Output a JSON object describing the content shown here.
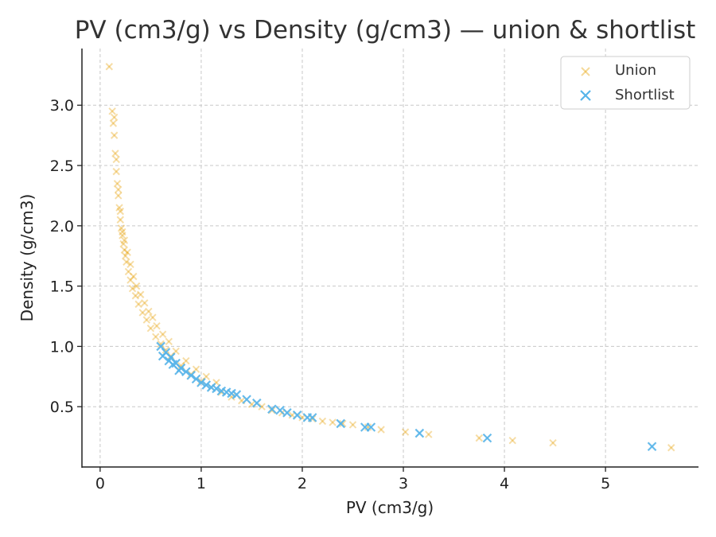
{
  "chart_data": {
    "type": "scatter",
    "title": "PV (cm3/g) vs Density (g/cm3) — union & shortlist",
    "xlabel": "PV (cm3/g)",
    "ylabel": "Density (g/cm3)",
    "xlim": [
      -0.18,
      5.92
    ],
    "ylim": [
      0.0,
      3.47
    ],
    "xticks": [
      0,
      1,
      2,
      3,
      4,
      5
    ],
    "xtick_labels": [
      "0",
      "1",
      "2",
      "3",
      "4",
      "5"
    ],
    "yticks": [
      0.5,
      1.0,
      1.5,
      2.0,
      2.5,
      3.0
    ],
    "ytick_labels": [
      "0.5",
      "1.0",
      "1.5",
      "2.0",
      "2.5",
      "3.0"
    ],
    "grid": true,
    "legend_position": "top-right",
    "marker": "x",
    "series": [
      {
        "name": "Union",
        "color": "#E69F00",
        "alpha": 0.35,
        "x": [
          0.09,
          0.12,
          0.13,
          0.14,
          0.15,
          0.16,
          0.17,
          0.18,
          0.19,
          0.2,
          0.21,
          0.22,
          0.23,
          0.24,
          0.25,
          0.26,
          0.28,
          0.3,
          0.32,
          0.35,
          0.38,
          0.42,
          0.46,
          0.5,
          0.55,
          0.6,
          0.65,
          0.7,
          0.8,
          0.9,
          1.0,
          1.1,
          1.2,
          1.3,
          1.4,
          1.5,
          1.6,
          1.7,
          1.8,
          1.9,
          2.0,
          2.1,
          2.2,
          2.3,
          2.4,
          2.5,
          2.65,
          2.78,
          3.02,
          3.25,
          3.75,
          4.08,
          4.48,
          5.65,
          0.14,
          0.16,
          0.18,
          0.2,
          0.22,
          0.24,
          0.27,
          0.3,
          0.33,
          0.36,
          0.4,
          0.44,
          0.48,
          0.52,
          0.56,
          0.62,
          0.68,
          0.75,
          0.85,
          0.95,
          1.05,
          1.15
        ],
        "y": [
          3.32,
          2.95,
          2.85,
          2.75,
          2.6,
          2.45,
          2.35,
          2.25,
          2.15,
          2.05,
          1.98,
          1.92,
          1.85,
          1.8,
          1.75,
          1.7,
          1.62,
          1.55,
          1.48,
          1.42,
          1.35,
          1.28,
          1.22,
          1.15,
          1.08,
          1.02,
          0.97,
          0.92,
          0.84,
          0.77,
          0.71,
          0.66,
          0.62,
          0.58,
          0.55,
          0.52,
          0.5,
          0.47,
          0.45,
          0.43,
          0.41,
          0.4,
          0.38,
          0.37,
          0.36,
          0.35,
          0.33,
          0.31,
          0.29,
          0.27,
          0.24,
          0.22,
          0.2,
          0.16,
          2.9,
          2.55,
          2.3,
          2.12,
          1.95,
          1.88,
          1.78,
          1.68,
          1.58,
          1.5,
          1.43,
          1.36,
          1.29,
          1.24,
          1.17,
          1.1,
          1.04,
          0.96,
          0.88,
          0.81,
          0.75,
          0.7
        ]
      },
      {
        "name": "Shortlist",
        "color": "#56B4E9",
        "alpha": 0.9,
        "x": [
          0.6,
          0.65,
          0.7,
          0.75,
          0.8,
          0.85,
          0.9,
          0.95,
          1.0,
          1.05,
          1.1,
          1.15,
          1.2,
          1.25,
          1.3,
          1.35,
          1.45,
          1.55,
          1.7,
          1.78,
          1.85,
          1.95,
          2.05,
          2.1,
          2.38,
          2.62,
          2.68,
          3.16,
          3.83,
          5.46,
          0.62,
          0.68,
          0.72,
          0.78
        ],
        "y": [
          1.0,
          0.95,
          0.91,
          0.86,
          0.82,
          0.79,
          0.76,
          0.73,
          0.7,
          0.68,
          0.66,
          0.65,
          0.63,
          0.62,
          0.61,
          0.6,
          0.56,
          0.53,
          0.48,
          0.47,
          0.45,
          0.43,
          0.41,
          0.41,
          0.36,
          0.33,
          0.33,
          0.28,
          0.24,
          0.17,
          0.92,
          0.88,
          0.85,
          0.8
        ]
      }
    ]
  }
}
